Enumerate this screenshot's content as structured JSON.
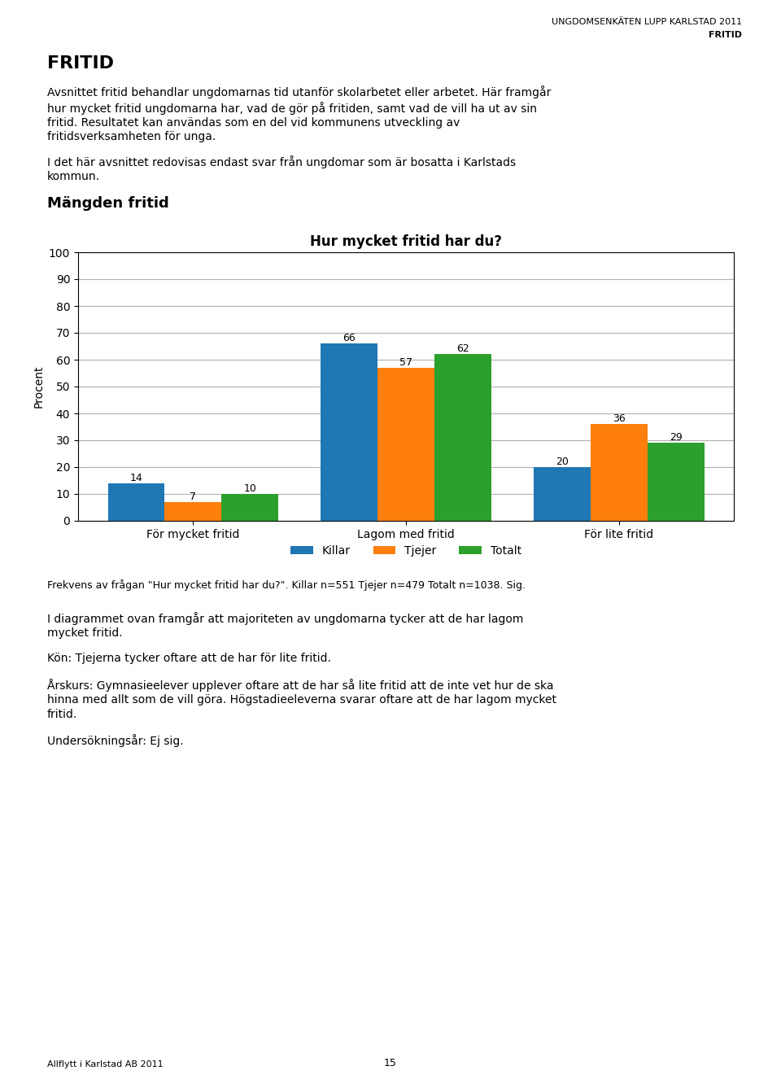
{
  "chart_data": {
    "type": "bar",
    "title": "Hur mycket fritid har du?",
    "ylabel": "Procent",
    "categories": [
      "För mycket fritid",
      "Lagom med fritid",
      "För lite fritid"
    ],
    "series": [
      {
        "name": "Killar",
        "values": [
          14,
          66,
          20
        ]
      },
      {
        "name": "Tjejer",
        "values": [
          7,
          57,
          36
        ]
      },
      {
        "name": "Totalt",
        "values": [
          10,
          62,
          29
        ]
      }
    ],
    "ylim": [
      0,
      100
    ],
    "yticks": [
      0,
      10,
      20,
      30,
      40,
      50,
      60,
      70,
      80,
      90,
      100
    ],
    "grid": true,
    "legend": "lower center",
    "data_labels": true,
    "annotations": [
      "UNGDOMSENKÄTEN LUPP KARLSTAD 2011",
      "FRITID",
      "FRITID",
      "Avsnittet fritid behandlar ungdomarnas tid utanför skolarbetet eller arbetet. Här framgår\nhur mycket fritid ungdomarna har, vad de gör på fritiden, samt vad de vill ha ut av sin\nfritid. Resultatet kan användas som en del vid kommunens utveckling av\nfritidsverksamheten för unga.",
      "I det här avsnittet redovisas endast svar från ungdomar som är bosatta i Karlstads\nkommun.",
      "Mängden fritid",
      "Frekvens av frågan \"Hur mycket fritid har du?\". Killar n=551 Tjejer n=479 Totalt n=1038. Sig.",
      "I diagrammet ovan framgår att majoriteten av ungdomarna tycker att de har lagom\nmycket fritid.",
      "Kön: Tjejerna tycker oftare att de har för lite fritid.",
      "Årskurs: Gymnasieelever upplever oftare att de har så lite fritid att de inte vet hur de ska\nhinna med allt som de vill göra. Högstadieeleverna svarar oftare att de har lagom mycket\nfritid.",
      "Undersökningsår: Ej sig.",
      "Allflytt i Karlstad AB 2011",
      "15"
    ]
  }
}
